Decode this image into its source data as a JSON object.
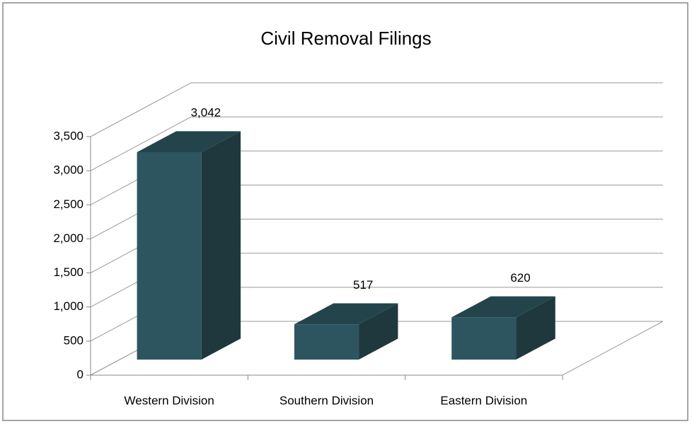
{
  "chart_data": {
    "type": "bar3d",
    "title": "Civil Removal Filings",
    "categories": [
      "Western Division",
      "Southern Division",
      "Eastern Division"
    ],
    "values": [
      3042,
      517,
      620
    ],
    "value_labels": [
      "3,042",
      "517",
      "620"
    ],
    "color": "#2d5560",
    "ylim": [
      0,
      3500
    ],
    "yticks": [
      0,
      500,
      {
        "value": 1000,
        "label": "1,000"
      },
      {
        "value": 1500,
        "label": "1,500"
      },
      {
        "value": 2000,
        "label": "2,000"
      },
      {
        "value": 2500,
        "label": "2,500"
      },
      {
        "value": 3000,
        "label": "3,000"
      },
      {
        "value": 3500,
        "label": "3,500"
      }
    ],
    "grid": true
  }
}
